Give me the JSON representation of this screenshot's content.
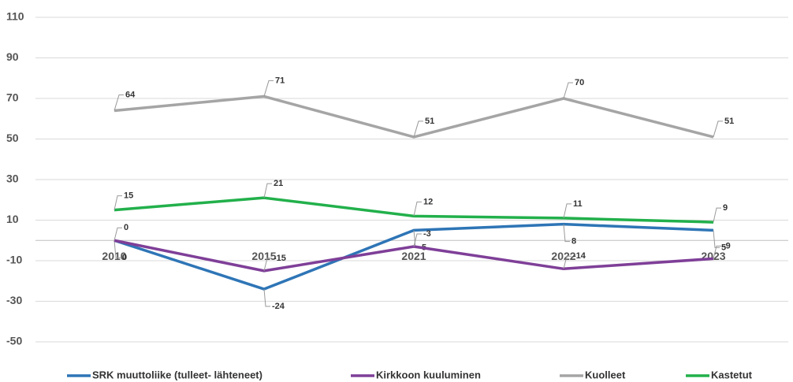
{
  "chart_data": {
    "type": "line",
    "categories": [
      "2010",
      "2015",
      "2021",
      "2022",
      "2023"
    ],
    "series": [
      {
        "name": "SRK muuttoliike (tulleet- lähteneet)",
        "color": "#2e75b6",
        "values": [
          0,
          -24,
          5,
          8,
          5
        ]
      },
      {
        "name": "Kirkkoon kuuluminen",
        "color": "#7f3f98",
        "values": [
          0,
          -15,
          -3,
          -14,
          -9
        ]
      },
      {
        "name": "Kuolleet",
        "color": "#a5a5a5",
        "values": [
          64,
          71,
          51,
          70,
          51
        ]
      },
      {
        "name": "Kastetut",
        "color": "#22b04b",
        "values": [
          15,
          21,
          12,
          11,
          9
        ]
      }
    ],
    "ylim": [
      -50,
      110
    ],
    "yticks": [
      -50,
      -30,
      -10,
      10,
      30,
      50,
      70,
      90,
      110
    ],
    "grid": true,
    "legend": "bottom"
  }
}
